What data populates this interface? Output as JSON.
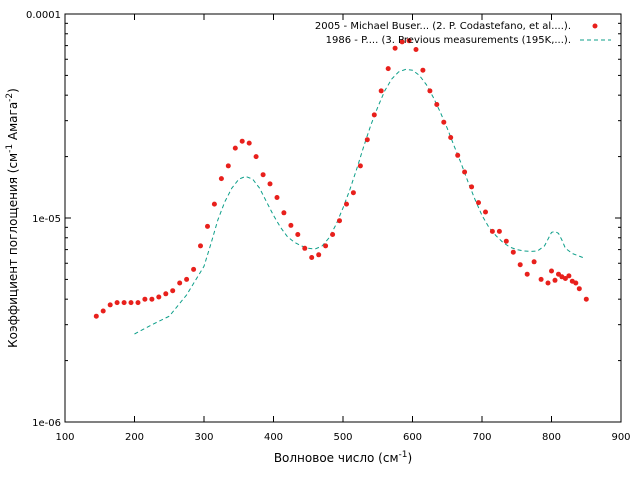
{
  "chart_data": {
    "type": "scatter",
    "title": "",
    "xlabel": {
      "base": "Волновое число (см",
      "sup": "-1",
      "tail": ")"
    },
    "ylabel": {
      "part1": "Коэффициент поглощения (см",
      "sup1": "-1",
      "part2": " Амага",
      "sup2": "-2",
      "tail": ")"
    },
    "xlim": [
      100,
      900
    ],
    "ylim": [
      1e-06,
      0.0001
    ],
    "yscale": "log",
    "grid": false,
    "legend_position": "top-right",
    "x_ticks": [
      "100",
      "200",
      "300",
      "400",
      "500",
      "600",
      "700",
      "800",
      "900"
    ],
    "y_ticks": [
      "1e-06",
      "1e-05",
      "0.0001"
    ],
    "colors": {
      "points": "#e8201c",
      "line": "#0e9f8a",
      "axis": "#000000"
    },
    "series": [
      {
        "name": "2005 - Michael Buser... (2. P. Codastefano,  et al....).",
        "style": "points",
        "x": [
          145,
          155,
          165,
          175,
          185,
          195,
          205,
          215,
          225,
          235,
          245,
          255,
          265,
          275,
          285,
          295,
          305,
          315,
          325,
          335,
          345,
          355,
          365,
          375,
          385,
          395,
          405,
          415,
          425,
          435,
          445,
          455,
          465,
          475,
          485,
          495,
          505,
          515,
          525,
          535,
          545,
          555,
          565,
          575,
          585,
          595,
          605,
          615,
          625,
          635,
          645,
          655,
          665,
          675,
          685,
          695,
          705,
          715,
          725,
          735,
          745,
          755,
          765,
          775,
          785,
          795,
          800,
          805,
          810,
          815,
          820,
          825,
          830,
          835,
          840,
          850
        ],
        "y": [
          3.3e-06,
          3.5e-06,
          3.75e-06,
          3.85e-06,
          3.85e-06,
          3.85e-06,
          3.85e-06,
          4e-06,
          4e-06,
          4.1e-06,
          4.25e-06,
          4.4e-06,
          4.8e-06,
          5e-06,
          5.6e-06,
          7.3e-06,
          9.1e-06,
          1.17e-05,
          1.56e-05,
          1.8e-05,
          2.2e-05,
          2.38e-05,
          2.33e-05,
          2e-05,
          1.63e-05,
          1.47e-05,
          1.26e-05,
          1.06e-05,
          9.2e-06,
          8.3e-06,
          7.1e-06,
          6.4e-06,
          6.6e-06,
          7.3e-06,
          8.3e-06,
          9.7e-06,
          1.17e-05,
          1.33e-05,
          1.8e-05,
          2.42e-05,
          3.2e-05,
          4.2e-05,
          5.4e-05,
          6.8e-05,
          7.3e-05,
          7.4e-05,
          6.7e-05,
          5.3e-05,
          4.2e-05,
          3.6e-05,
          2.95e-05,
          2.48e-05,
          2.03e-05,
          1.68e-05,
          1.42e-05,
          1.19e-05,
          1.07e-05,
          8.6e-06,
          8.6e-06,
          7.7e-06,
          6.8e-06,
          5.9e-06,
          5.3e-06,
          6.1e-06,
          5e-06,
          4.8e-06,
          5.5e-06,
          4.95e-06,
          5.3e-06,
          5.15e-06,
          5.05e-06,
          5.2e-06,
          4.9e-06,
          4.8e-06,
          4.5e-06,
          4e-06
        ]
      },
      {
        "name": "1986 - P.... (3. Previous measurements (195K,...).",
        "style": "dashed-line",
        "x": [
          200,
          225,
          250,
          275,
          300,
          310,
          320,
          330,
          340,
          350,
          360,
          370,
          380,
          390,
          400,
          410,
          420,
          430,
          440,
          450,
          460,
          470,
          480,
          490,
          500,
          510,
          520,
          530,
          540,
          550,
          560,
          570,
          580,
          590,
          600,
          610,
          620,
          630,
          640,
          650,
          660,
          670,
          680,
          690,
          700,
          710,
          720,
          730,
          740,
          750,
          760,
          770,
          780,
          790,
          800,
          805,
          810,
          815,
          820,
          830,
          845
        ],
        "y": [
          2.7e-06,
          3e-06,
          3.3e-06,
          4.2e-06,
          5.8e-06,
          7.5e-06,
          9.8e-06,
          1.2e-05,
          1.4e-05,
          1.55e-05,
          1.6e-05,
          1.55e-05,
          1.4e-05,
          1.2e-05,
          1.03e-05,
          9e-06,
          8.1e-06,
          7.6e-06,
          7.3e-06,
          7.1e-06,
          7.05e-06,
          7.3e-06,
          8e-06,
          9.3e-06,
          1.12e-05,
          1.38e-05,
          1.75e-05,
          2.25e-05,
          2.85e-05,
          3.5e-05,
          4.2e-05,
          4.8e-05,
          5.2e-05,
          5.35e-05,
          5.3e-05,
          5e-05,
          4.5e-05,
          3.9e-05,
          3.3e-05,
          2.75e-05,
          2.25e-05,
          1.85e-05,
          1.5e-05,
          1.23e-05,
          1.03e-05,
          9e-06,
          8.2e-06,
          7.6e-06,
          7.2e-06,
          7e-06,
          6.9e-06,
          6.85e-06,
          6.9e-06,
          7.3e-06,
          8.5e-06,
          8.6e-06,
          8.4e-06,
          7.8e-06,
          7.1e-06,
          6.7e-06,
          6.4e-06
        ]
      }
    ]
  }
}
